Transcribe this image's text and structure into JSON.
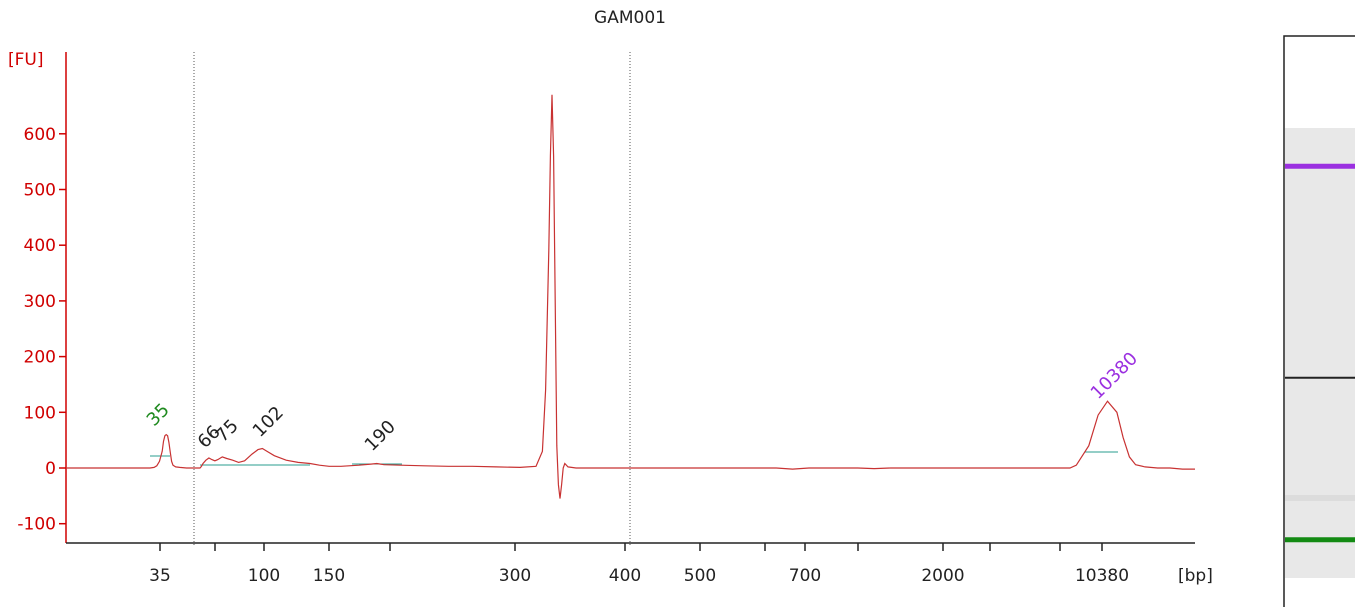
{
  "chart_data": {
    "type": "line",
    "title": "GAM001",
    "xlabel": "[bp]",
    "ylabel": "[FU]",
    "ylim": [
      -120,
      740
    ],
    "yticks": [
      -100,
      0,
      100,
      200,
      300,
      400,
      500,
      600
    ],
    "xticks": [
      "35",
      "",
      "100",
      "150",
      "",
      "300",
      "400",
      "500",
      "",
      "700",
      "",
      "2000",
      "",
      "10380"
    ],
    "peak_labels": [
      {
        "text": "35",
        "color": "#1f8a1f",
        "bp": "35"
      },
      {
        "text": "66",
        "color": "#222222",
        "bp": "66"
      },
      {
        "text": "75",
        "color": "#222222",
        "bp": "75"
      },
      {
        "text": "102",
        "color": "#222222",
        "bp": "102"
      },
      {
        "text": "190",
        "color": "#222222",
        "bp": "190"
      },
      {
        "text": "10380",
        "color": "#9b30e0",
        "bp": "10380"
      }
    ],
    "series": [
      {
        "color": "#c83232",
        "points": [
          [
            -1,
            0
          ],
          [
            0,
            0
          ],
          [
            1,
            0
          ],
          [
            2,
            0
          ],
          [
            3,
            0
          ],
          [
            4,
            0
          ],
          [
            5,
            0
          ],
          [
            6,
            0
          ],
          [
            7,
            0
          ],
          [
            8,
            0
          ],
          [
            9,
            0
          ],
          [
            10,
            0
          ],
          [
            11,
            0
          ],
          [
            12,
            0
          ],
          [
            13,
            0
          ],
          [
            14,
            0
          ],
          [
            15,
            0
          ],
          [
            16,
            0
          ],
          [
            17,
            0
          ],
          [
            18,
            0
          ],
          [
            19,
            0
          ],
          [
            20,
            0
          ],
          [
            21,
            0
          ],
          [
            22,
            0
          ],
          [
            23,
            0
          ],
          [
            26,
            1
          ],
          [
            28,
            4
          ],
          [
            30,
            12
          ],
          [
            32,
            30
          ],
          [
            33,
            48
          ],
          [
            34,
            58
          ],
          [
            35,
            60
          ],
          [
            36,
            58
          ],
          [
            37,
            46
          ],
          [
            38,
            28
          ],
          [
            39,
            12
          ],
          [
            40,
            5
          ],
          [
            42,
            2
          ],
          [
            45,
            1
          ],
          [
            50,
            0
          ],
          [
            55,
            0
          ],
          [
            60,
            0
          ],
          [
            61,
            3
          ],
          [
            62,
            8
          ],
          [
            64,
            14
          ],
          [
            66,
            18
          ],
          [
            68,
            15
          ],
          [
            70,
            13
          ],
          [
            72,
            15
          ],
          [
            75,
            20
          ],
          [
            78,
            17
          ],
          [
            82,
            14
          ],
          [
            86,
            10
          ],
          [
            90,
            13
          ],
          [
            95,
            25
          ],
          [
            99,
            33
          ],
          [
            102,
            35
          ],
          [
            105,
            30
          ],
          [
            110,
            22
          ],
          [
            118,
            14
          ],
          [
            126,
            10
          ],
          [
            134,
            8
          ],
          [
            142,
            5
          ],
          [
            150,
            3
          ],
          [
            160,
            3
          ],
          [
            175,
            5
          ],
          [
            185,
            7
          ],
          [
            190,
            8
          ],
          [
            196,
            6
          ],
          [
            210,
            5
          ],
          [
            230,
            4
          ],
          [
            250,
            3
          ],
          [
            270,
            3
          ],
          [
            290,
            2
          ],
          [
            310,
            1
          ],
          [
            320,
            3
          ],
          [
            324,
            30
          ],
          [
            326,
            140
          ],
          [
            328,
            390
          ],
          [
            329,
            560
          ],
          [
            330,
            670
          ],
          [
            331,
            560
          ],
          [
            332,
            300
          ],
          [
            333,
            40
          ],
          [
            334,
            -30
          ],
          [
            335,
            -55
          ],
          [
            336,
            -30
          ],
          [
            337,
            0
          ],
          [
            338,
            8
          ],
          [
            340,
            2
          ],
          [
            345,
            0
          ],
          [
            360,
            0
          ],
          [
            380,
            0
          ],
          [
            400,
            0
          ],
          [
            450,
            0
          ],
          [
            500,
            0
          ],
          [
            550,
            0
          ],
          [
            600,
            0
          ],
          [
            650,
            0
          ],
          [
            700,
            0
          ],
          [
            750,
            0
          ],
          [
            800,
            0
          ],
          [
            850,
            0
          ],
          [
            900,
            0
          ],
          [
            950,
            -2
          ],
          [
            1000,
            0
          ],
          [
            1050,
            0
          ],
          [
            1100,
            0
          ],
          [
            1150,
            0
          ],
          [
            1200,
            -1
          ],
          [
            1250,
            0
          ],
          [
            1300,
            0
          ],
          [
            1350,
            0
          ],
          [
            1400,
            0
          ],
          [
            1450,
            0
          ],
          [
            1500,
            0
          ],
          [
            1550,
            0
          ],
          [
            1600,
            0
          ],
          [
            1650,
            0
          ],
          [
            1700,
            0
          ],
          [
            1750,
            0
          ],
          [
            1800,
            0
          ],
          [
            1810,
            5
          ],
          [
            1830,
            40
          ],
          [
            1845,
            95
          ],
          [
            1860,
            120
          ],
          [
            1875,
            100
          ],
          [
            1885,
            55
          ],
          [
            1895,
            20
          ],
          [
            1905,
            6
          ],
          [
            1920,
            2
          ],
          [
            1940,
            0
          ],
          [
            1960,
            0
          ],
          [
            1980,
            -2
          ],
          [
            2000,
            -2
          ]
        ]
      }
    ]
  },
  "gel_lane": {
    "background": "#e8e8e8",
    "bands": [
      {
        "name": "upper-marker",
        "color": "#9b30e0",
        "level": 0.085
      },
      {
        "name": "sample-band",
        "color": "#222222",
        "level": 0.555
      },
      {
        "name": "lower-marker",
        "color": "#138a13",
        "level": 0.915
      }
    ]
  }
}
